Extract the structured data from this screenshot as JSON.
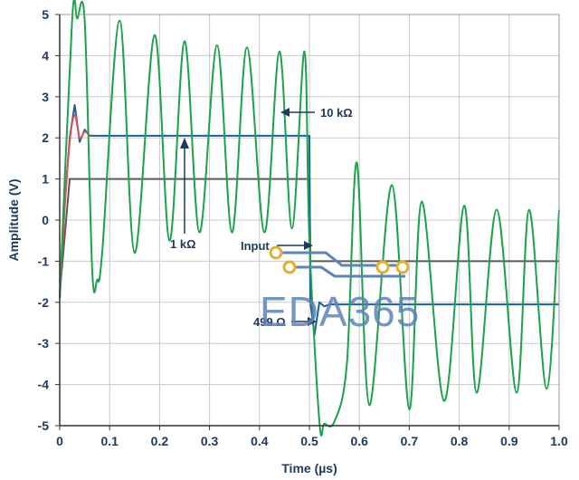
{
  "chart_data": {
    "type": "line",
    "xlabel": "Time (µs)",
    "ylabel": "Amplitude (V)",
    "xlim": [
      0,
      1.0
    ],
    "ylim": [
      -5,
      5
    ],
    "x_ticks": [
      "0",
      "0.1",
      "0.2",
      "0.3",
      "0.4",
      "0.5",
      "0.6",
      "0.7",
      "0.8",
      "0.9",
      "1.0"
    ],
    "y_ticks": [
      "5",
      "4",
      "3",
      "2",
      "1",
      "0",
      "-1",
      "-2",
      "-3",
      "-4",
      "-5"
    ],
    "grid": true,
    "series": [
      {
        "name": "Input",
        "color": "#5a5a5a",
        "x": [
          0,
          0.02,
          0.5,
          0.502,
          1.0
        ],
        "y": [
          -1.8,
          1.0,
          1.0,
          -1.0,
          -1.0
        ]
      },
      {
        "name": "1 kΩ",
        "color": "#1f5e9c",
        "x": [
          0,
          0.01,
          0.02,
          0.03,
          0.04,
          0.05,
          0.06,
          0.5,
          0.502,
          0.51,
          0.52,
          0.53,
          0.54,
          0.55,
          1.0
        ],
        "y": [
          -1.9,
          0.4,
          2.0,
          2.8,
          1.9,
          2.2,
          2.05,
          2.05,
          -2.0,
          -2.8,
          -2.0,
          -2.1,
          -2.05,
          -2.05,
          -2.05
        ]
      },
      {
        "name": "499 Ω",
        "color": "#d9534f",
        "x": [
          0,
          0.01,
          0.02,
          0.03,
          0.04,
          0.05,
          0.06
        ],
        "y": [
          -1.9,
          0.3,
          1.9,
          2.55,
          2.0,
          2.15,
          2.05
        ]
      },
      {
        "name": "10 kΩ",
        "color": "#1aa34a",
        "x": [
          0,
          0.025,
          0.035,
          0.05,
          0.065,
          0.075,
          0.085,
          0.12,
          0.15,
          0.19,
          0.22,
          0.25,
          0.28,
          0.315,
          0.345,
          0.375,
          0.41,
          0.44,
          0.465,
          0.49,
          0.5,
          0.52,
          0.53,
          0.55,
          0.575,
          0.595,
          0.62,
          0.665,
          0.7,
          0.725,
          0.77,
          0.81,
          0.835,
          0.875,
          0.915,
          0.94,
          0.975,
          1.0
        ],
        "y": [
          -1.9,
          4.9,
          4.9,
          4.85,
          -1.2,
          -1.45,
          -0.8,
          4.85,
          -0.8,
          4.5,
          -0.5,
          4.35,
          -0.3,
          4.25,
          -0.3,
          4.2,
          -0.3,
          4.1,
          -0.2,
          4.1,
          -0.5,
          -4.9,
          -4.95,
          -4.9,
          -3.5,
          1.4,
          -4.5,
          0.85,
          -4.6,
          0.45,
          -4.4,
          0.35,
          -4.2,
          0.25,
          -4.2,
          0.25,
          -4.1,
          0.25
        ]
      }
    ],
    "annotations": [
      {
        "text": "10 kΩ",
        "x": 0.5,
        "y": 2.6
      },
      {
        "text": "1 kΩ",
        "x": 0.26,
        "y": -0.6
      },
      {
        "text": "Input",
        "x": 0.4,
        "y": -0.6
      },
      {
        "text": "499 Ω",
        "x": 0.42,
        "y": -2.45
      }
    ]
  },
  "watermark": {
    "text": "EDA365",
    "color": "#5b84b8"
  }
}
